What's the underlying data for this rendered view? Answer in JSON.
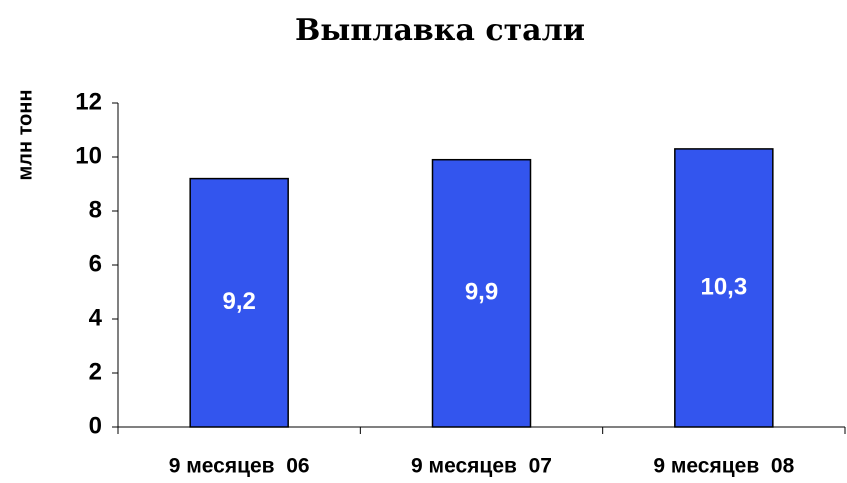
{
  "chart_data": {
    "type": "bar",
    "title": "Выплавка стали",
    "y_label": "млн тонн",
    "categories": [
      "9 месяцев  06",
      "9 месяцев  07",
      "9 месяцев  08"
    ],
    "values": [
      9.2,
      9.9,
      10.3
    ],
    "value_labels": [
      "9,2",
      "9,9",
      "10,3"
    ],
    "color": "#3355ee",
    "ylim": [
      0,
      12
    ],
    "yticks": [
      0,
      2,
      4,
      6,
      8,
      10,
      12
    ]
  }
}
